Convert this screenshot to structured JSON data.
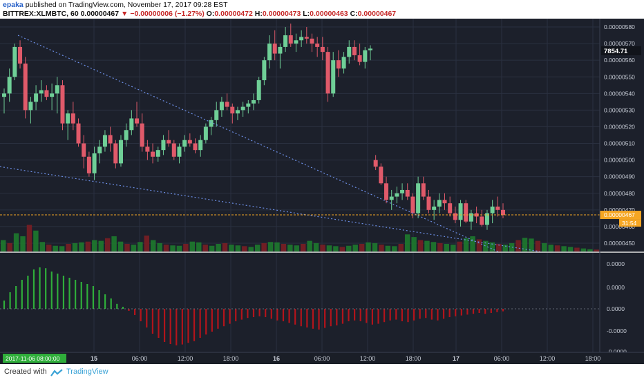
{
  "header": {
    "author": "epaka",
    "published_text": "published on TradingView.com, November 17, 2017 09:28 EST",
    "symbol": "BITTREX:XLMBTC, 60",
    "last": "0.00000467",
    "change": "−0.00000006 (−1.27%)",
    "o_label": "O:",
    "o_value": "0.00000472",
    "h_label": "H:",
    "h_value": "0.00000473",
    "l_label": "L:",
    "l_value": "0.00000463",
    "c_label": "C:",
    "c_value": "0.00000467"
  },
  "footer": {
    "created_with": "Created with",
    "brand": "TradingView"
  },
  "colors": {
    "background": "#1c202b",
    "grid": "#2a3040",
    "up": "#6fcf97",
    "down": "#e05a6a",
    "up_volume": "#1e7a2e",
    "down_volume": "#7a1e24",
    "trend": "#6d8fe6",
    "price_line": "#f5a623",
    "hist_up": "#2fae3a",
    "hist_down": "#b3141b"
  },
  "chart_data": [
    {
      "type": "candlestick",
      "title": "",
      "y_axis_ticks": [
        "0.00000580",
        "0.00000570",
        "0.00000560",
        "0.00000550",
        "0.00000540",
        "0.00000530",
        "0.00000520",
        "0.00000510",
        "0.00000500",
        "0.00000490",
        "0.00000480",
        "0.00000470",
        "0.00000460",
        "0.00000450"
      ],
      "ylim": [
        4.45e-06,
        5.85e-06
      ],
      "x_axis_ticks": [
        "15",
        "06:00",
        "12:00",
        "18:00",
        "16",
        "06:00",
        "12:00",
        "18:00",
        "17",
        "06:00",
        "12:00",
        "18:00"
      ],
      "current_price_label": "0.00000467",
      "countdown_label": "31:54",
      "secondary_price_label": "7854.71",
      "date_label": "2017-11-06 08:00:00",
      "grid": true,
      "up_color": "#6fcf97",
      "down_color": "#e05a6a",
      "candles": [
        [
          538,
          543,
          528,
          540
        ],
        [
          540,
          555,
          535,
          550
        ],
        [
          550,
          570,
          548,
          568
        ],
        [
          568,
          572,
          555,
          558
        ],
        [
          558,
          562,
          525,
          530
        ],
        [
          530,
          538,
          522,
          535
        ],
        [
          535,
          545,
          530,
          540
        ],
        [
          540,
          548,
          535,
          542
        ],
        [
          542,
          545,
          536,
          538
        ],
        [
          538,
          546,
          530,
          540
        ],
        [
          540,
          550,
          528,
          545
        ],
        [
          545,
          548,
          518,
          522
        ],
        [
          522,
          530,
          512,
          528
        ],
        [
          528,
          535,
          518,
          522
        ],
        [
          522,
          525,
          508,
          510
        ],
        [
          510,
          515,
          495,
          502
        ],
        [
          502,
          505,
          490,
          492
        ],
        [
          492,
          508,
          488,
          504
        ],
        [
          504,
          512,
          498,
          508
        ],
        [
          508,
          518,
          505,
          515
        ],
        [
          515,
          520,
          505,
          510
        ],
        [
          510,
          512,
          495,
          498
        ],
        [
          498,
          515,
          496,
          512
        ],
        [
          512,
          522,
          508,
          518
        ],
        [
          518,
          530,
          515,
          525
        ],
        [
          525,
          535,
          520,
          522
        ],
        [
          522,
          528,
          505,
          508
        ],
        [
          508,
          512,
          500,
          505
        ],
        [
          505,
          510,
          498,
          502
        ],
        [
          502,
          508,
          499,
          506
        ],
        [
          506,
          515,
          503,
          512
        ],
        [
          512,
          518,
          508,
          510
        ],
        [
          510,
          512,
          500,
          502
        ],
        [
          502,
          510,
          498,
          508
        ],
        [
          508,
          515,
          505,
          512
        ],
        [
          512,
          516,
          508,
          510
        ],
        [
          510,
          513,
          504,
          506
        ],
        [
          506,
          515,
          502,
          512
        ],
        [
          512,
          522,
          510,
          520
        ],
        [
          520,
          526,
          515,
          524
        ],
        [
          524,
          535,
          520,
          530
        ],
        [
          530,
          538,
          526,
          535
        ],
        [
          535,
          540,
          530,
          532
        ],
        [
          532,
          534,
          522,
          528
        ],
        [
          528,
          532,
          524,
          530
        ],
        [
          530,
          535,
          526,
          532
        ],
        [
          532,
          536,
          528,
          534
        ],
        [
          534,
          540,
          530,
          536
        ],
        [
          536,
          550,
          534,
          548
        ],
        [
          548,
          562,
          545,
          560
        ],
        [
          560,
          575,
          555,
          570
        ],
        [
          570,
          578,
          560,
          564
        ],
        [
          564,
          570,
          555,
          568
        ],
        [
          568,
          580,
          565,
          575
        ],
        [
          575,
          582,
          568,
          570
        ],
        [
          570,
          576,
          565,
          572
        ],
        [
          572,
          578,
          568,
          574
        ],
        [
          574,
          580,
          570,
          573
        ],
        [
          573,
          576,
          565,
          570
        ],
        [
          570,
          574,
          562,
          568
        ],
        [
          568,
          574,
          560,
          565
        ],
        [
          565,
          568,
          535,
          540
        ],
        [
          540,
          565,
          538,
          560
        ],
        [
          560,
          566,
          550,
          555
        ],
        [
          555,
          565,
          552,
          562
        ],
        [
          562,
          572,
          558,
          568
        ],
        [
          568,
          572,
          560,
          563
        ],
        [
          563,
          570,
          557,
          559
        ],
        [
          559,
          568,
          555,
          566
        ],
        [
          566,
          569,
          560,
          567
        ]
      ],
      "lower_candles": [
        [
          500,
          503,
          494,
          496
        ],
        [
          496,
          498,
          485,
          486
        ],
        [
          486,
          490,
          474,
          476
        ],
        [
          476,
          482,
          470,
          478
        ],
        [
          478,
          484,
          474,
          480
        ],
        [
          480,
          486,
          476,
          482
        ],
        [
          482,
          486,
          476,
          478
        ],
        [
          478,
          480,
          465,
          468
        ],
        [
          468,
          490,
          465,
          486
        ],
        [
          486,
          490,
          476,
          478
        ],
        [
          478,
          482,
          468,
          470
        ],
        [
          470,
          476,
          464,
          472
        ],
        [
          472,
          480,
          468,
          476
        ],
        [
          476,
          480,
          470,
          474
        ],
        [
          474,
          478,
          466,
          468
        ],
        [
          468,
          472,
          462,
          464
        ],
        [
          464,
          476,
          460,
          474
        ],
        [
          474,
          476,
          462,
          463
        ],
        [
          463,
          470,
          458,
          468
        ],
        [
          468,
          472,
          462,
          466
        ],
        [
          466,
          470,
          460,
          461
        ],
        [
          461,
          470,
          458,
          468
        ],
        [
          468,
          476,
          462,
          472
        ],
        [
          472,
          478,
          466,
          470
        ],
        [
          470,
          474,
          465,
          467
        ]
      ],
      "volume": [
        30,
        22,
        48,
        40,
        70,
        55,
        25,
        18,
        15,
        14,
        20,
        22,
        24,
        26,
        30,
        28,
        35,
        40,
        26,
        20,
        18,
        25,
        42,
        30,
        22,
        18,
        16,
        15,
        20,
        26,
        24,
        18,
        15,
        20,
        22,
        18,
        16,
        14,
        12,
        18,
        22,
        25,
        24,
        20,
        18,
        16,
        20,
        28,
        22,
        18,
        16,
        14,
        12,
        15,
        18,
        20,
        24,
        22,
        18,
        15,
        14,
        20,
        45,
        38,
        30,
        28,
        25,
        22,
        20,
        18,
        26,
        35,
        40,
        32,
        28,
        24,
        20,
        18,
        22,
        30,
        36,
        34,
        28,
        22,
        18,
        16,
        14,
        12,
        10,
        8,
        6,
        5
      ],
      "trendlines": [
        {
          "from": [
            0.03,
            575
          ],
          "to": [
            0.83,
            445
          ]
        },
        {
          "from": [
            0.0,
            496
          ],
          "to": [
            0.9,
            445
          ]
        }
      ]
    },
    {
      "type": "bar",
      "title": "",
      "y_axis_ticks": [
        "0.0000",
        "0.0000",
        "0.0000",
        "-0.0000",
        "-0.0000"
      ],
      "histogram": [
        0.2,
        0.4,
        0.55,
        0.7,
        0.8,
        0.95,
        1.0,
        0.98,
        0.9,
        0.85,
        0.8,
        0.75,
        0.7,
        0.65,
        0.6,
        0.55,
        0.45,
        0.35,
        0.25,
        0.12,
        0.05,
        -0.05,
        -0.15,
        -0.3,
        -0.45,
        -0.6,
        -0.7,
        -0.8,
        -0.85,
        -0.88,
        -0.86,
        -0.82,
        -0.78,
        -0.7,
        -0.62,
        -0.55,
        -0.48,
        -0.42,
        -0.36,
        -0.3,
        -0.26,
        -0.22,
        -0.2,
        -0.18,
        -0.2,
        -0.24,
        -0.28,
        -0.3,
        -0.34,
        -0.38,
        -0.42,
        -0.45,
        -0.48,
        -0.5,
        -0.46,
        -0.42,
        -0.4,
        -0.36,
        -0.3,
        -0.28,
        -0.3,
        -0.34,
        -0.38,
        -0.36,
        -0.32,
        -0.28,
        -0.26,
        -0.3,
        -0.32,
        -0.28,
        -0.24,
        -0.22,
        -0.26,
        -0.28,
        -0.24,
        -0.2,
        -0.18,
        -0.16,
        -0.14,
        -0.12,
        -0.1,
        -0.12,
        -0.1,
        -0.08,
        -0.06
      ]
    }
  ]
}
